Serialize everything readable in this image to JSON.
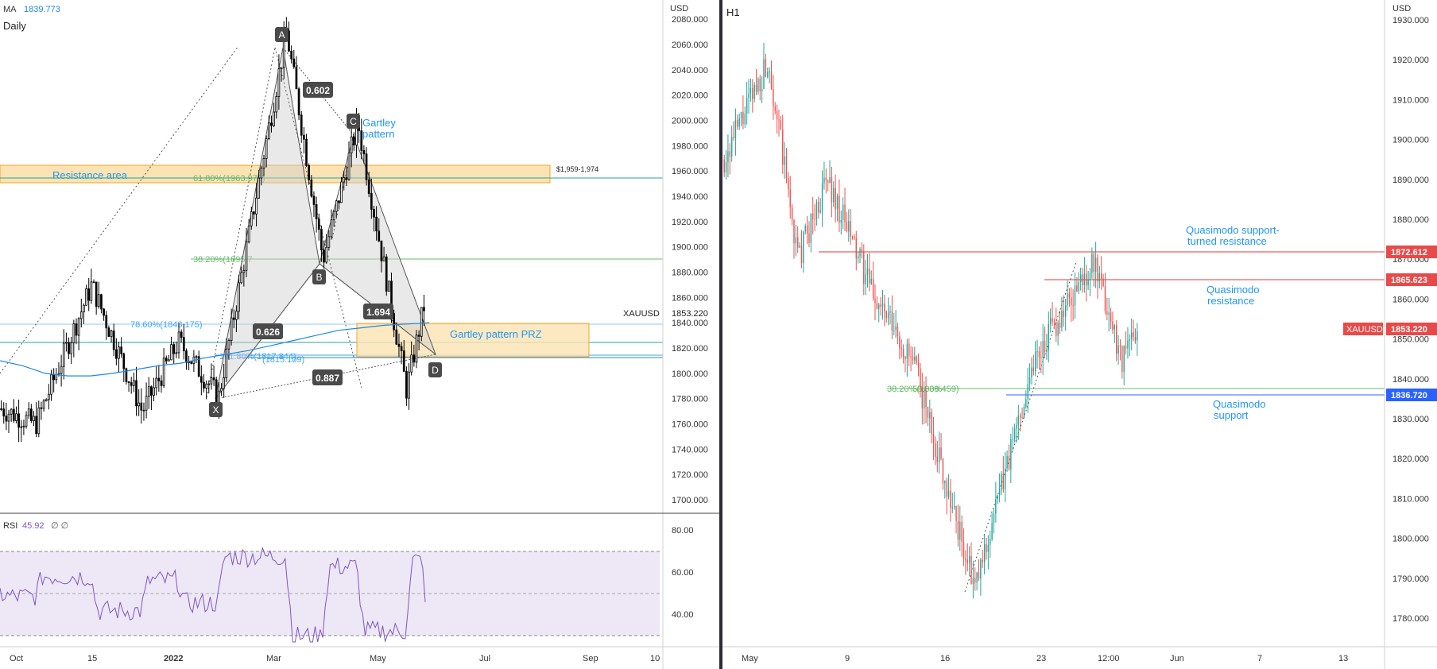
{
  "colors": {
    "up": "#26a69a",
    "down": "#ef5350",
    "candle_dark": "#000000",
    "resistance_fill": "#fbe3b3",
    "resistance_edge": "#f5a623",
    "fib_green": "#66bb6a",
    "fib_blue": "#42a5f5",
    "label_blue": "#2196f3",
    "red_line": "#e53935",
    "badge": "#4a4a4a",
    "rsi": "#7e57c2",
    "rsi_band": "#ede7f6",
    "price_tag": "#e84a4a",
    "support_tag": "#2962ff",
    "pattern_fill": "#cfcfcf"
  },
  "left_panel": {
    "header": {
      "indicator": "MA",
      "ma_value": "1839.773",
      "interval": "Daily"
    },
    "currency_label": "USD",
    "symbol_tag": "XAUUSD",
    "price_tag": "1853.220",
    "range_label": "$1,959-1,974",
    "resistance_label": "Resistance area",
    "prz_label": "Gartley pattern PRZ",
    "gartley_label_line1": "Gartley",
    "gartley_label_line2": "pattern",
    "fib_labels": {
      "f618": "61.80%(1963.976)",
      "f382": "38.20%(1895.7",
      "f786": "78.60%(1843.175)",
      "f1618": "161.80%(1817.844)",
      "f1272": "(1815.109)"
    },
    "points": [
      {
        "name": "X",
        "x": "2022-01-28",
        "y": 1781
      },
      {
        "name": "A",
        "x": "2022-03-08",
        "y": 2070
      },
      {
        "name": "B",
        "x": "2022-03-29",
        "y": 1890
      },
      {
        "name": "C",
        "x": "2022-04-18",
        "y": 1998
      },
      {
        "name": "D",
        "x": "2022-05-26",
        "y": 1815
      }
    ],
    "ratios": [
      "0.602",
      "1.694",
      "0.626",
      "0.887"
    ],
    "x_axis": [
      "Oct",
      "15",
      "2022",
      "Mar",
      "May",
      "Jul",
      "Sep",
      "10"
    ],
    "y_axis": [
      "2080.000",
      "2060.000",
      "2040.000",
      "2020.000",
      "2000.000",
      "1980.000",
      "1960.000",
      "1940.000",
      "1920.000",
      "1900.000",
      "1880.000",
      "1860.000",
      "1840.000",
      "1820.000",
      "1800.000",
      "1780.000",
      "1760.000",
      "1740.000",
      "1720.000",
      "1700.000"
    ]
  },
  "rsi_panel": {
    "label": "RSI",
    "value": "45.92",
    "extra": "∅ ∅",
    "y_axis": [
      "80.00",
      "60.00",
      "40.00"
    ]
  },
  "right_panel": {
    "interval": "H1",
    "currency_label": "USD",
    "symbol_tag": "XAUUSD",
    "price_tag": "1853.220",
    "level_1872_tag": "1872.612",
    "level_1865_tag": "1865.623",
    "level_1836_tag": "1836.720",
    "qm_support_turned_line1": "Quasimodo support-",
    "qm_support_turned_line2": "turned resistance",
    "qm_resistance_line1": "Quasimodo",
    "qm_resistance_line2": "resistance",
    "qm_support_line1": "Quasimodo",
    "qm_support_line2": "support",
    "fib_label": "38.20%(1838.459)",
    "fib_label2": "50.00%",
    "x_axis": [
      "May",
      "9",
      "16",
      "23",
      "12:00",
      "Jun",
      "7",
      "13"
    ],
    "y_axis": [
      "1930.000",
      "1920.000",
      "1910.000",
      "1900.000",
      "1890.000",
      "1880.000",
      "1870.000",
      "1860.000",
      "1850.000",
      "1840.000",
      "1830.000",
      "1820.000",
      "1810.000",
      "1800.000",
      "1790.000",
      "1780.000"
    ]
  },
  "chart_data": [
    {
      "type": "candlestick",
      "title": "",
      "interval": "Daily",
      "symbol": "XAUUSD",
      "ylabel": "USD",
      "ylim": [
        1690,
        2092
      ],
      "indicator": {
        "name": "MA",
        "last": 1839.773
      },
      "levels": [
        {
          "name": "Resistance area",
          "from": 1959,
          "to": 1974
        },
        {
          "name": "Gartley pattern PRZ",
          "from": 1815,
          "to": 1843
        },
        {
          "name": "61.80%",
          "value": 1963.976
        },
        {
          "name": "38.20%",
          "value": 1895.7
        },
        {
          "name": "78.60%",
          "value": 1843.175
        },
        {
          "name": "161.80%",
          "value": 1817.844
        }
      ],
      "last_price": 1853.22,
      "anchors": [
        {
          "x": "2021-09-25",
          "y": 1772
        },
        {
          "x": "2021-10-15",
          "y": 1760
        },
        {
          "x": "2021-11-16",
          "y": 1870
        },
        {
          "x": "2021-12-15",
          "y": 1770
        },
        {
          "x": "2022-01-05",
          "y": 1825
        },
        {
          "x": "2022-01-28",
          "y": 1781
        },
        {
          "x": "2022-03-08",
          "y": 2070
        },
        {
          "x": "2022-03-29",
          "y": 1890
        },
        {
          "x": "2022-04-18",
          "y": 1998
        },
        {
          "x": "2022-05-16",
          "y": 1787
        },
        {
          "x": "2022-05-26",
          "y": 1853
        }
      ]
    },
    {
      "type": "line",
      "title": "RSI",
      "ylim": [
        25,
        88
      ],
      "levels": [
        70,
        50,
        30
      ],
      "last": 45.92
    },
    {
      "type": "candlestick",
      "title": "",
      "interval": "H1",
      "symbol": "XAUUSD",
      "ylabel": "USD",
      "ylim": [
        1772,
        1933
      ],
      "levels": [
        {
          "name": "Quasimodo support-turned resistance",
          "value": 1872.612
        },
        {
          "name": "Quasimodo resistance",
          "value": 1865.623
        },
        {
          "name": "Quasimodo support",
          "value": 1836.72
        },
        {
          "name": "38.20%",
          "value": 1838.459
        }
      ],
      "last_price": 1853.22,
      "anchors": [
        {
          "x": "2022-04-29",
          "y": 1895
        },
        {
          "x": "2022-05-02",
          "y": 1920
        },
        {
          "x": "2022-05-04",
          "y": 1870
        },
        {
          "x": "2022-05-06",
          "y": 1890
        },
        {
          "x": "2022-05-09",
          "y": 1862
        },
        {
          "x": "2022-05-12",
          "y": 1842
        },
        {
          "x": "2022-05-16",
          "y": 1787
        },
        {
          "x": "2022-05-20",
          "y": 1845
        },
        {
          "x": "2022-05-24",
          "y": 1869
        },
        {
          "x": "2022-05-26",
          "y": 1845
        },
        {
          "x": "2022-05-27",
          "y": 1853
        }
      ]
    }
  ]
}
